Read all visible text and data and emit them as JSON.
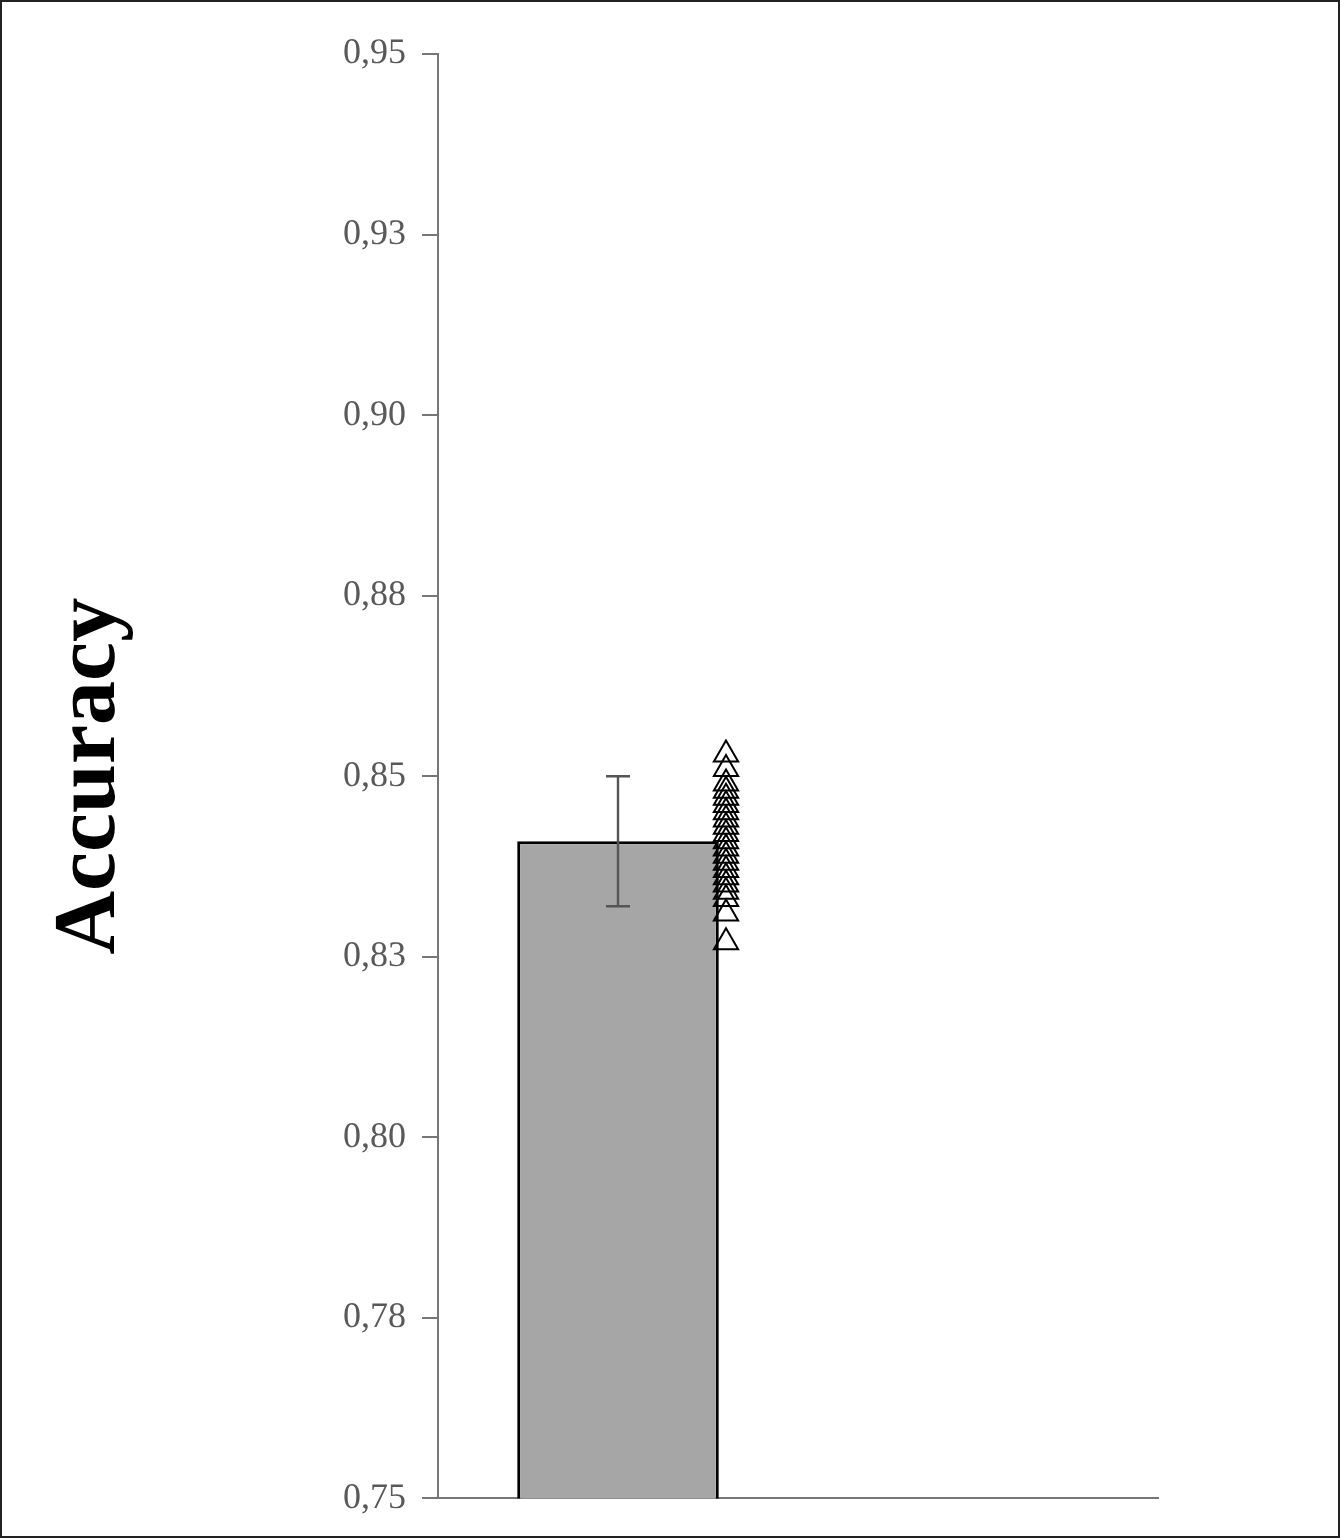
{
  "chart_data": {
    "type": "bar",
    "ylabel": "Accuracy",
    "categories": [
      null
    ],
    "series": [
      {
        "type": "bar",
        "color": "#a6a6a6",
        "values": [
          0.841
        ],
        "errors": [
          0.009
        ]
      },
      {
        "type": "scatter",
        "color": "#000000",
        "marker": "triangle",
        "x": [
          null,
          null,
          null,
          null,
          null,
          null,
          null,
          null,
          null,
          null,
          null,
          null,
          null,
          null,
          null,
          null,
          null,
          null,
          null,
          null,
          null
        ],
        "values": [
          0.853,
          0.851,
          0.849,
          0.848,
          0.847,
          0.846,
          0.845,
          0.844,
          0.843,
          0.842,
          0.841,
          0.84,
          0.839,
          0.838,
          0.837,
          0.836,
          0.835,
          0.834,
          0.833,
          0.831,
          0.827
        ]
      }
    ],
    "ylim": [
      0.75,
      0.95
    ],
    "yticks": [
      {
        "value": 0.75,
        "label": "0,75"
      },
      {
        "value": 0.775,
        "label": "0,78"
      },
      {
        "value": 0.8,
        "label": "0,80"
      },
      {
        "value": 0.825,
        "label": "0,83"
      },
      {
        "value": 0.85,
        "label": "0,85"
      },
      {
        "value": 0.875,
        "label": "0,88"
      },
      {
        "value": 0.9,
        "label": "0,90"
      },
      {
        "value": 0.925,
        "label": "0,93"
      },
      {
        "value": 0.95,
        "label": "0,95"
      }
    ],
    "tick_labels": "y",
    "grid": false,
    "legend": false
  }
}
